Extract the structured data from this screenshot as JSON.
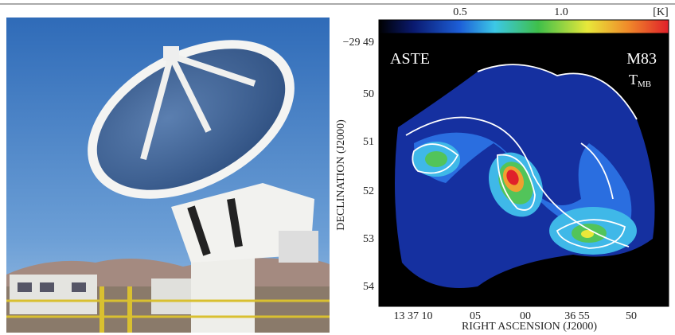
{
  "colorbar": {
    "ticks": [
      "0.5",
      "1.0"
    ],
    "unit": "[K]"
  },
  "map": {
    "telescope": "ASTE",
    "source": "M83",
    "quantity": "T",
    "quantity_subscript": "MB"
  },
  "y_axis": {
    "title": "DECLINATION (J2000)",
    "ticks": [
      "−29 49",
      "50",
      "51",
      "52",
      "53",
      "54"
    ]
  },
  "x_axis": {
    "title": "RIGHT ASCENSION (J2000)",
    "ticks": [
      "13 37 10",
      "05",
      "00",
      "36 55",
      "50"
    ]
  }
}
